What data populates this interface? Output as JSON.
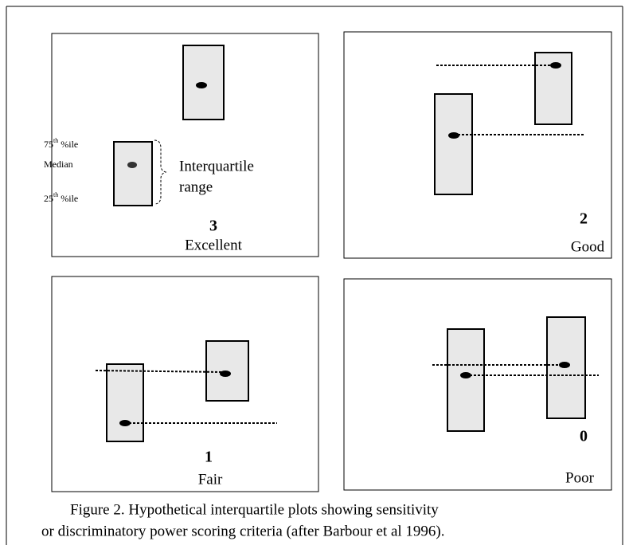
{
  "panels": [
    {
      "score": "3",
      "rating": "Excellent"
    },
    {
      "score": "2",
      "rating": "Good"
    },
    {
      "score": "1",
      "rating": "Fair"
    },
    {
      "score": "0",
      "rating": "Poor"
    }
  ],
  "legend": {
    "upper": {
      "number": "75",
      "suffix": "th",
      "unit": "%ile"
    },
    "median": "Median",
    "lower": {
      "number": "25",
      "suffix": "th",
      "unit": "%ile"
    },
    "range": [
      "Interquartile",
      "range"
    ]
  },
  "caption": [
    "Figure 2. Hypothetical interquartile plots showing sensitivity",
    "or discriminatory power scoring criteria (after Barbour et al 1996)."
  ]
}
